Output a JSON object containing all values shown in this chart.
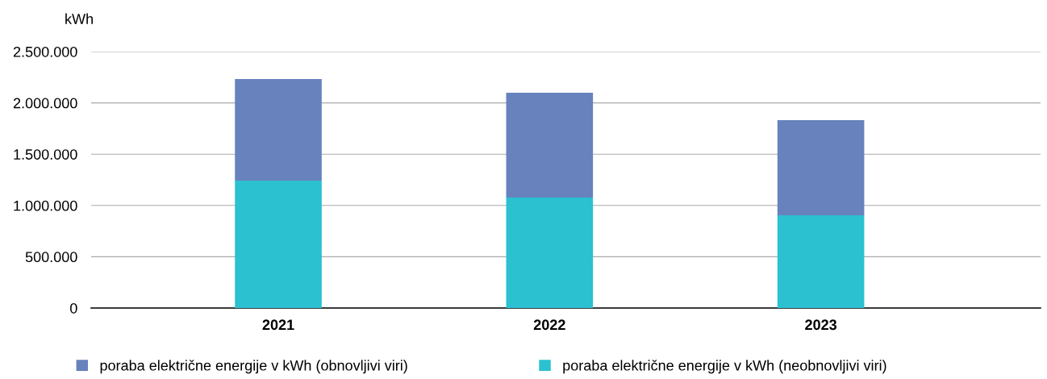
{
  "chart_data": {
    "type": "bar",
    "stacked": true,
    "ylabel": "kWh",
    "categories": [
      "2021",
      "2022",
      "2023"
    ],
    "series": [
      {
        "name": "poraba električne energije v kWh (neobnovljivi viri)",
        "color": "#2bc1d0",
        "values": [
          1242000,
          1077000,
          904000
        ]
      },
      {
        "name": "poraba električne energije v kWh (obnovljivi viri)",
        "color": "#6782bc",
        "values": [
          991000,
          1022000,
          928000
        ]
      }
    ],
    "ylim": [
      0,
      2500000
    ],
    "yticks": [
      {
        "value": 0,
        "label": "0"
      },
      {
        "value": 500000,
        "label": "500.000"
      },
      {
        "value": 1000000,
        "label": "1.000.000"
      },
      {
        "value": 1500000,
        "label": "1.500.000"
      },
      {
        "value": 2000000,
        "label": "2.000.000"
      },
      {
        "value": 2500000,
        "label": "2.500.000"
      }
    ],
    "grid": "y",
    "legend": "bottom"
  }
}
